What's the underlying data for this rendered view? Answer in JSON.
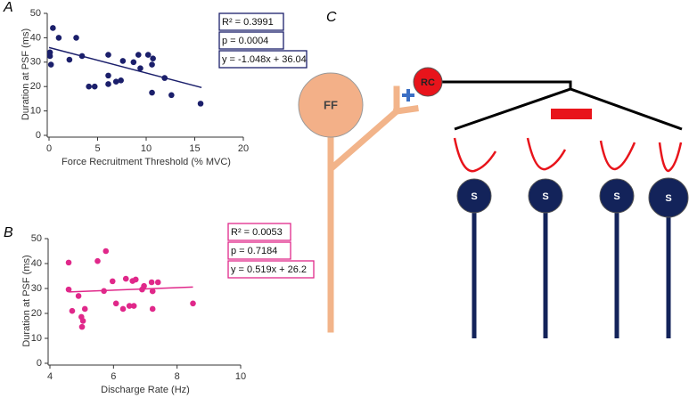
{
  "chart_data": [
    {
      "type": "scatter",
      "panel": "A",
      "xlabel": "Force Recruitment Threshold (% MVC)",
      "ylabel": "Duration at PSF (ms)",
      "color": "#1b1f6b",
      "x": [
        0.4,
        1.0,
        0.1,
        0.1,
        0.2,
        2.1,
        2.8,
        3.4,
        4.1,
        4.7,
        6.1,
        6.1,
        6.1,
        6.9,
        7.4,
        7.6,
        8.7,
        9.2,
        9.4,
        10.2,
        10.7,
        10.6,
        10.6,
        11.9,
        12.6,
        15.6
      ],
      "values": [
        44,
        40,
        34,
        32.5,
        29,
        31,
        40,
        32.5,
        20,
        20,
        33,
        24.5,
        21,
        22,
        22.5,
        30.5,
        30,
        33,
        27.5,
        33,
        31.5,
        29,
        17.5,
        23.5,
        16.5,
        13
      ],
      "trend": {
        "x": [
          0,
          15.7
        ],
        "values": [
          36,
          19.6
        ]
      },
      "annotations": [
        "R² = 0.3991",
        "p = 0.0004",
        "y = -1.048x + 36.04"
      ],
      "xlim": [
        0,
        20
      ],
      "xticks": [
        0,
        5,
        10,
        15,
        20
      ],
      "ylim": [
        0,
        50
      ],
      "yticks": [
        0,
        10,
        20,
        30,
        40,
        50
      ]
    },
    {
      "type": "scatter",
      "panel": "B",
      "xlabel": "Discharge Rate (Hz)",
      "ylabel": "Duration at PSF (ms)",
      "color": "#e0288a",
      "x": [
        4.59,
        4.59,
        4.7,
        4.9,
        4.99,
        5.04,
        5.01,
        5.1,
        5.5,
        5.7,
        5.76,
        5.97,
        6.08,
        6.3,
        6.39,
        6.5,
        6.6,
        6.64,
        6.7,
        6.9,
        6.96,
        7.2,
        7.23,
        7.4,
        7.23,
        8.5
      ],
      "values": [
        40.4,
        29.6,
        21,
        27,
        18.6,
        17,
        14.6,
        21.8,
        41,
        29,
        45,
        32.9,
        24,
        21.8,
        33.9,
        23,
        33,
        23,
        33.6,
        29.6,
        31,
        32.5,
        21.8,
        32.5,
        28.9,
        24
      ],
      "trend": {
        "x": [
          4.6,
          8.5
        ],
        "values": [
          28.6,
          30.6
        ]
      },
      "annotations": [
        "R² = 0.0053",
        "p = 0.7184",
        "y = 0.519x + 26.2"
      ],
      "xlim": [
        4,
        10
      ],
      "xticks": [
        4,
        6,
        8,
        10
      ],
      "ylim": [
        0,
        50
      ],
      "yticks": [
        0,
        10,
        20,
        30,
        40,
        50
      ]
    }
  ],
  "diagram": {
    "panel": "C",
    "ff": "FF",
    "rc": "RC",
    "s": [
      "S",
      "S",
      "S",
      "S"
    ]
  }
}
